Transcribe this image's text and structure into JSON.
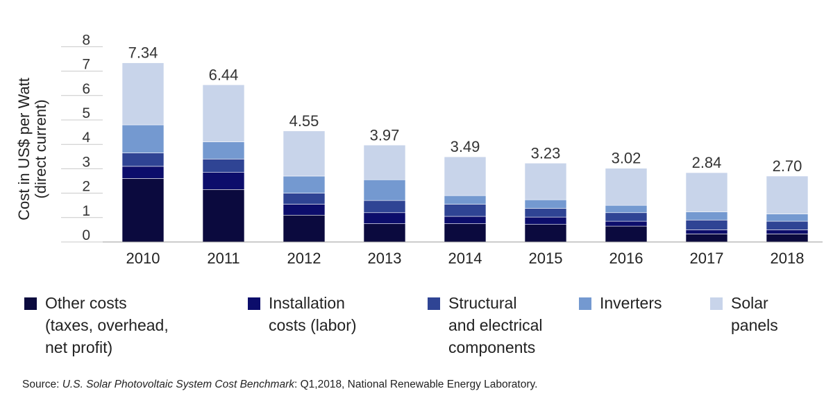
{
  "chart_data": {
    "type": "bar",
    "stacked": true,
    "ylabel": "Cost in US$ per Watt\n(direct current)",
    "xlabel": "",
    "ylim": [
      0,
      8
    ],
    "yticks": [
      0,
      1,
      2,
      3,
      4,
      5,
      6,
      7,
      8
    ],
    "grid": false,
    "categories": [
      "2010",
      "2011",
      "2012",
      "2013",
      "2014",
      "2015",
      "2016",
      "2017",
      "2018"
    ],
    "totals": [
      7.34,
      6.44,
      4.55,
      3.97,
      3.49,
      3.23,
      3.02,
      2.84,
      2.7
    ],
    "total_labels": [
      "7.34",
      "6.44",
      "4.55",
      "3.97",
      "3.49",
      "3.23",
      "3.02",
      "2.84",
      "2.70"
    ],
    "series": [
      {
        "name": "Other costs\n(taxes, overhead,\nnet profit)",
        "color": "#0b0a3e",
        "values": [
          2.6,
          2.15,
          1.1,
          0.75,
          0.75,
          0.72,
          0.65,
          0.33,
          0.33
        ]
      },
      {
        "name": "Installation\ncosts (labor)",
        "color": "#0c0d6b",
        "values": [
          0.5,
          0.7,
          0.45,
          0.45,
          0.3,
          0.3,
          0.2,
          0.17,
          0.17
        ]
      },
      {
        "name": "Structural\nand electrical\ncomponents",
        "color": "#2f4494",
        "values": [
          0.55,
          0.55,
          0.45,
          0.5,
          0.5,
          0.36,
          0.35,
          0.4,
          0.35
        ]
      },
      {
        "name": "Inverters",
        "color": "#7499d0",
        "values": [
          1.15,
          0.7,
          0.7,
          0.85,
          0.35,
          0.35,
          0.3,
          0.33,
          0.3
        ]
      },
      {
        "name": "Solar\npanels",
        "color": "#c8d4ea",
        "values": [
          2.54,
          2.34,
          1.85,
          1.42,
          1.59,
          1.5,
          1.52,
          1.61,
          1.55
        ]
      }
    ]
  },
  "source": {
    "prefix": "Source: ",
    "title": "U.S. Solar Photovoltaic System Cost Benchmark",
    "rest": ": Q1,2018, National Renewable Energy Laboratory."
  }
}
